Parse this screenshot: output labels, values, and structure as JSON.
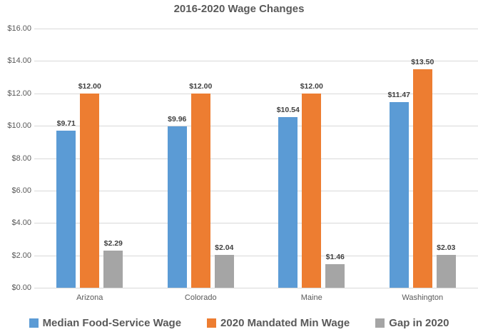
{
  "title": "2016-2020 Wage Changes",
  "colors": {
    "series_blue": "#5B9BD5",
    "series_orange": "#ED7D31",
    "series_gray": "#A5A5A5",
    "gridline": "#D9D9D9",
    "axis_text": "#595959",
    "data_label_text": "#404040"
  },
  "chart_data": {
    "type": "bar",
    "title": "2016-2020 Wage Changes",
    "categories": [
      "Arizona",
      "Colorado",
      "Maine",
      "Washington"
    ],
    "series": [
      {
        "name": "Median Food-Service Wage",
        "color": "#5B9BD5",
        "values": [
          9.71,
          9.96,
          10.54,
          11.47
        ],
        "data_labels": [
          "$9.71",
          "$9.96",
          "$10.54",
          "$11.47"
        ]
      },
      {
        "name": "2020 Mandated Min Wage",
        "color": "#ED7D31",
        "values": [
          12.0,
          12.0,
          12.0,
          13.5
        ],
        "data_labels": [
          "$12.00",
          "$12.00",
          "$12.00",
          "$13.50"
        ]
      },
      {
        "name": "Gap in 2020",
        "color": "#A5A5A5",
        "values": [
          2.29,
          2.04,
          1.46,
          2.03
        ],
        "data_labels": [
          "$2.29",
          "$2.04",
          "$1.46",
          "$2.03"
        ]
      }
    ],
    "xlabel": "",
    "ylabel": "",
    "y_axis": {
      "min": 0,
      "max": 16,
      "step": 2,
      "tick_labels": [
        "$16.00",
        "$14.00",
        "$12.00",
        "$10.00",
        "$8.00",
        "$6.00",
        "$4.00",
        "$2.00",
        "$0.00"
      ]
    },
    "grid": true,
    "legend_position": "bottom"
  },
  "legend": {
    "items": [
      {
        "label": "Median Food-Service Wage",
        "color": "#5B9BD5"
      },
      {
        "label": "2020 Mandated Min Wage",
        "color": "#ED7D31"
      },
      {
        "label": "Gap in 2020",
        "color": "#A5A5A5"
      }
    ]
  }
}
